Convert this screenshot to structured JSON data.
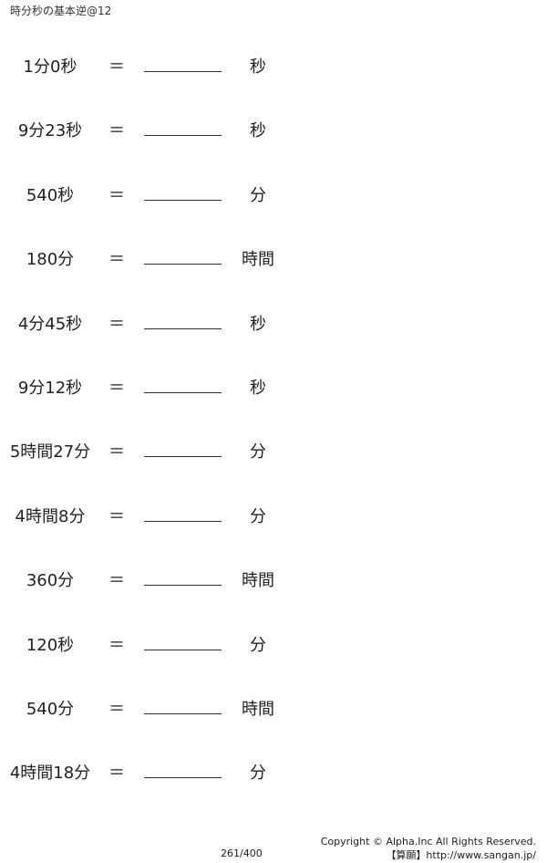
{
  "title": "時分秒の基本逆@12",
  "equals": "＝",
  "problems": [
    {
      "q": "1分0秒",
      "unit": "秒"
    },
    {
      "q": "9分23秒",
      "unit": "秒"
    },
    {
      "q": "540秒",
      "unit": "分"
    },
    {
      "q": "180分",
      "unit": "時間"
    },
    {
      "q": "4分45秒",
      "unit": "秒"
    },
    {
      "q": "9分12秒",
      "unit": "秒"
    },
    {
      "q": "5時間27分",
      "unit": "分"
    },
    {
      "q": "4時間8分",
      "unit": "分"
    },
    {
      "q": "360分",
      "unit": "時間"
    },
    {
      "q": "120秒",
      "unit": "分"
    },
    {
      "q": "540分",
      "unit": "時間"
    },
    {
      "q": "4時間18分",
      "unit": "分"
    }
  ],
  "footer": {
    "page": "261/400",
    "copyright": "Copyright © Alpha.Inc All Rights Reserved.",
    "site": "【算願】http://www.sangan.jp/"
  }
}
